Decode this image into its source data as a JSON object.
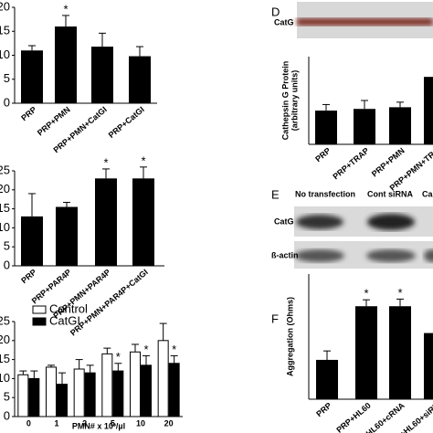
{
  "chart_data": [
    {
      "type": "bar",
      "categories": [
        "PRP",
        "PRP+PMN",
        "PRP+PMN+CatGI",
        "PRP+CatGI"
      ],
      "values": [
        11,
        16,
        11.8,
        9.8
      ],
      "errors": [
        1,
        2.3,
        2.8,
        2
      ],
      "annotations": [
        null,
        "*",
        null,
        null
      ],
      "color": "#000000",
      "ylim": [
        0,
        20
      ],
      "yticks": [
        0,
        5,
        10,
        15,
        20
      ]
    },
    {
      "type": "bar",
      "categories": [
        "PRP",
        "PRP+PAR4P",
        "PRP+PMN+PAR4P",
        "PRP+PMN+PAR4P+CatGI"
      ],
      "values": [
        13,
        15.5,
        23,
        23
      ],
      "errors": [
        6,
        1.2,
        2.5,
        3
      ],
      "annotations": [
        null,
        null,
        "*",
        "*"
      ],
      "color": "#000000",
      "ylim": [
        0,
        25
      ],
      "yticks": [
        0,
        5,
        10,
        15,
        20,
        25
      ]
    },
    {
      "type": "grouped-bar",
      "categories": [
        "0",
        "1",
        "2",
        "5",
        "10",
        "20"
      ],
      "xlabel": "PMN# x 10³/µl",
      "series": [
        {
          "name": "Control",
          "color": "#ffffff",
          "values": [
            11,
            13,
            12.5,
            16.5,
            17,
            20
          ],
          "errors": [
            1,
            0.5,
            2.5,
            1.5,
            2,
            4.5
          ],
          "annotations": [
            null,
            null,
            null,
            null,
            null,
            null
          ]
        },
        {
          "name": "CatGI",
          "color": "#000000",
          "values": [
            10,
            8.5,
            11.5,
            12,
            13.5,
            14
          ],
          "errors": [
            2,
            3,
            2,
            2,
            2.5,
            2
          ],
          "annotations": [
            null,
            null,
            null,
            "*",
            "*",
            "*"
          ]
        }
      ],
      "ylim": [
        0,
        25
      ],
      "yticks": [
        0,
        5,
        10,
        15,
        20,
        25
      ],
      "legend": "top-left"
    },
    {
      "type": "bar",
      "panel_label": "D",
      "blot_label": "CatG",
      "ylabel": [
        "Cathepsin G Protein",
        "(arbitrary units)"
      ],
      "categories": [
        "PRP",
        "PRP+TRAP",
        "PRP+PMN",
        "PRP+PMN+TRA"
      ],
      "values": [
        100,
        105,
        110,
        200
      ],
      "errors": [
        18,
        25,
        15,
        20
      ],
      "annotations": [
        null,
        null,
        null,
        null
      ],
      "color": "#000000",
      "ylim": [
        0,
        260
      ]
    },
    {
      "type": "bar",
      "panel_label": "F",
      "ylabel": [
        "Aggregation (Ohms)"
      ],
      "categories": [
        "PRP",
        "PRP+HL60",
        "PRP+HL60+cRNA",
        "PRP+HL60+siRN"
      ],
      "values": [
        11,
        26,
        26,
        18.5
      ],
      "errors": [
        2.5,
        1.8,
        2,
        2
      ],
      "annotations": [
        null,
        "*",
        "*",
        null
      ],
      "color": "#000000",
      "ylim": [
        0,
        35
      ]
    }
  ],
  "blot_panel": {
    "label": "E",
    "columns": [
      "No transfection",
      "Cont siRNA",
      "Ca"
    ],
    "rows": [
      "CatG",
      "ß-actin"
    ]
  }
}
